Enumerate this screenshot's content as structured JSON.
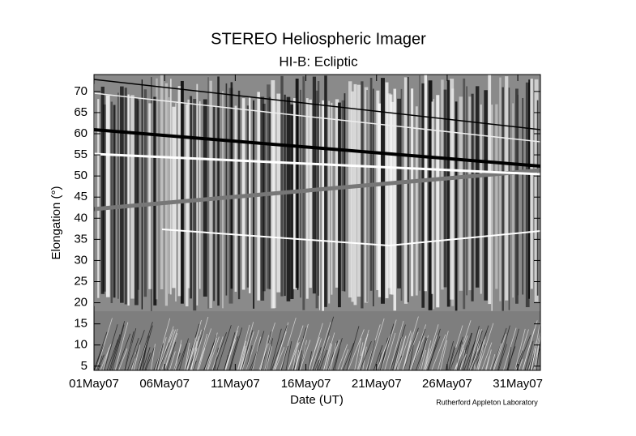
{
  "chart_data": {
    "type": "image",
    "title": "STEREO Heliospheric Imager",
    "subtitle": "HI-B: Ecliptic",
    "xlabel": "Date (UT)",
    "ylabel": "Elongation (°)",
    "credit": "Rutherford Appleton Laboratory",
    "xlim": [
      0,
      31.6
    ],
    "xticks": [
      {
        "value": 0,
        "label": "01May07"
      },
      {
        "value": 5,
        "label": "06May07"
      },
      {
        "value": 10,
        "label": "11May07"
      },
      {
        "value": 15,
        "label": "16May07"
      },
      {
        "value": 20,
        "label": "21May07"
      },
      {
        "value": 25,
        "label": "26May07"
      },
      {
        "value": 30,
        "label": "31May07"
      }
    ],
    "ylim": [
      4,
      74
    ],
    "yticks": [
      5,
      10,
      15,
      20,
      25,
      30,
      35,
      40,
      45,
      50,
      55,
      60,
      65,
      70
    ]
  }
}
